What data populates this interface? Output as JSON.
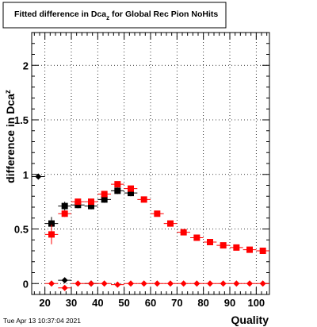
{
  "chart_data": {
    "type": "scatter",
    "title_main": "Fitted difference in Dca",
    "title_sub": "z",
    "title_rest": " for Global Rec Pion NoHits",
    "ylabel_main": "difference in Dca",
    "ylabel_sub": "z",
    "xlabel": "Quality",
    "xlim": [
      15,
      105
    ],
    "ylim": [
      -0.1,
      2.3
    ],
    "x_ticks": [
      "20",
      "30",
      "40",
      "50",
      "60",
      "70",
      "80",
      "90",
      "100"
    ],
    "x_tick_values": [
      20,
      30,
      40,
      50,
      60,
      70,
      80,
      90,
      100
    ],
    "y_ticks": [
      "0",
      "0.5",
      "1",
      "1.5",
      "2"
    ],
    "y_tick_values": [
      0,
      0.5,
      1,
      1.5,
      2
    ],
    "grid": true,
    "series": [
      {
        "marker": "square",
        "color": "#000000",
        "x": [
          22.5,
          27.5,
          32.5,
          37.5,
          42.5,
          47.5,
          52.5
        ],
        "y": [
          0.55,
          0.71,
          0.72,
          0.71,
          0.77,
          0.85,
          0.83
        ],
        "yerr": [
          0.06,
          0.04,
          0.03,
          0.03,
          0.03,
          0.03,
          0.03
        ]
      },
      {
        "marker": "square",
        "color": "#ff0000",
        "x": [
          22.5,
          27.5,
          32.5,
          37.5,
          42.5,
          47.5,
          52.5,
          57.5,
          62.5,
          67.5,
          72.5,
          77.5,
          82.5,
          87.5,
          92.5,
          97.5,
          102.5
        ],
        "y": [
          0.45,
          0.64,
          0.75,
          0.75,
          0.82,
          0.91,
          0.87,
          0.77,
          0.64,
          0.55,
          0.47,
          0.42,
          0.38,
          0.35,
          0.33,
          0.31,
          0.3
        ],
        "yerr": [
          0.09,
          0.03,
          0.02,
          0.02,
          0.02,
          0.02,
          0.02,
          0.02,
          0.02,
          0.02,
          0.02,
          0.02,
          0.02,
          0.02,
          0.02,
          0.02,
          0.02
        ]
      },
      {
        "marker": "diamond",
        "color": "#000000",
        "x": [
          17.5,
          27.5,
          37.5
        ],
        "y": [
          0.98,
          0.03,
          0.0
        ],
        "yerr": [
          0,
          0,
          0
        ]
      },
      {
        "marker": "diamond",
        "color": "#ff0000",
        "x": [
          22.5,
          27.5,
          32.5,
          37.5,
          42.5,
          47.5,
          52.5,
          57.5,
          62.5,
          67.5,
          72.5,
          77.5,
          82.5,
          87.5,
          92.5,
          97.5,
          102.5
        ],
        "y": [
          0.0,
          -0.04,
          0.0,
          0.0,
          0.0,
          -0.01,
          0.0,
          0.0,
          0.0,
          0.0,
          0.0,
          0.0,
          0.0,
          0.0,
          0.0,
          0.0,
          0.0
        ],
        "yerr": [
          0,
          0,
          0,
          0,
          0,
          0,
          0,
          0,
          0,
          0,
          0,
          0,
          0,
          0,
          0,
          0,
          0
        ]
      }
    ]
  },
  "footer": {
    "timestamp": "Tue Apr 13 10:37:04 2021"
  }
}
